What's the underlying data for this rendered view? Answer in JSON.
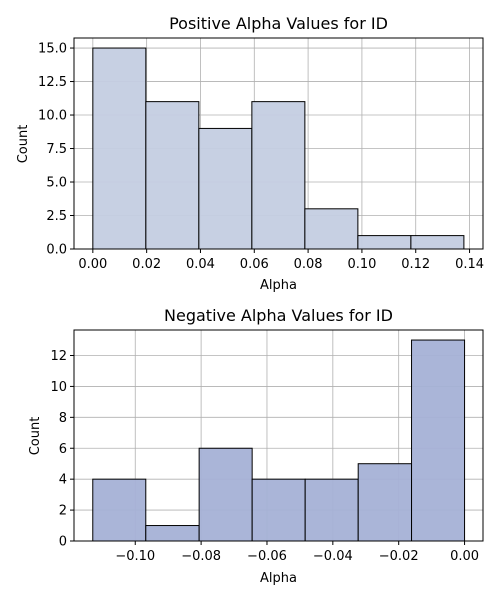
{
  "chart_data": [
    {
      "type": "bar",
      "title": "Positive Alpha Values for ID",
      "xlabel": "Alpha",
      "ylabel": "Count",
      "xlim": [
        -0.007,
        0.145
      ],
      "ylim": [
        0,
        15.75
      ],
      "xticks": [
        0.0,
        0.02,
        0.04,
        0.06,
        0.08,
        0.1,
        0.12,
        0.14
      ],
      "xtick_labels": [
        "0.00",
        "0.02",
        "0.04",
        "0.06",
        "0.08",
        "0.10",
        "0.12",
        "0.14"
      ],
      "yticks": [
        0,
        2.5,
        5,
        7.5,
        10,
        12.5,
        15
      ],
      "ytick_labels": [
        "0.0",
        "2.5",
        "5.0",
        "7.5",
        "10.0",
        "12.5",
        "15.0"
      ],
      "grid": true,
      "bar_color": "#c4cde2",
      "bins": [
        {
          "x0": 0.0,
          "x1": 0.0197,
          "count": 15
        },
        {
          "x0": 0.0197,
          "x1": 0.0394,
          "count": 11
        },
        {
          "x0": 0.0394,
          "x1": 0.0591,
          "count": 9
        },
        {
          "x0": 0.0591,
          "x1": 0.0788,
          "count": 11
        },
        {
          "x0": 0.0788,
          "x1": 0.0985,
          "count": 3
        },
        {
          "x0": 0.0985,
          "x1": 0.1182,
          "count": 1
        },
        {
          "x0": 0.1182,
          "x1": 0.1379,
          "count": 1
        }
      ]
    },
    {
      "type": "bar",
      "title": "Negative Alpha Values for ID",
      "xlabel": "Alpha",
      "ylabel": "Count",
      "xlim": [
        -0.1186,
        0.0056
      ],
      "ylim": [
        0,
        13.65
      ],
      "xticks": [
        -0.1,
        -0.08,
        -0.06,
        -0.04,
        -0.02,
        0.0
      ],
      "xtick_labels": [
        "−0.10",
        "−0.08",
        "−0.06",
        "−0.04",
        "−0.02",
        "0.00"
      ],
      "yticks": [
        0,
        2,
        4,
        6,
        8,
        10,
        12
      ],
      "ytick_labels": [
        "0",
        "2",
        "4",
        "6",
        "8",
        "10",
        "12"
      ],
      "grid": true,
      "bar_color": "#a5b1d6",
      "bins": [
        {
          "x0": -0.1129,
          "x1": -0.0968,
          "count": 4
        },
        {
          "x0": -0.0968,
          "x1": -0.0806,
          "count": 1
        },
        {
          "x0": -0.0806,
          "x1": -0.0645,
          "count": 6
        },
        {
          "x0": -0.0645,
          "x1": -0.0484,
          "count": 4
        },
        {
          "x0": -0.0484,
          "x1": -0.0323,
          "count": 4
        },
        {
          "x0": -0.0323,
          "x1": -0.0161,
          "count": 5
        },
        {
          "x0": -0.0161,
          "x1": 0.0,
          "count": 13
        }
      ]
    }
  ]
}
